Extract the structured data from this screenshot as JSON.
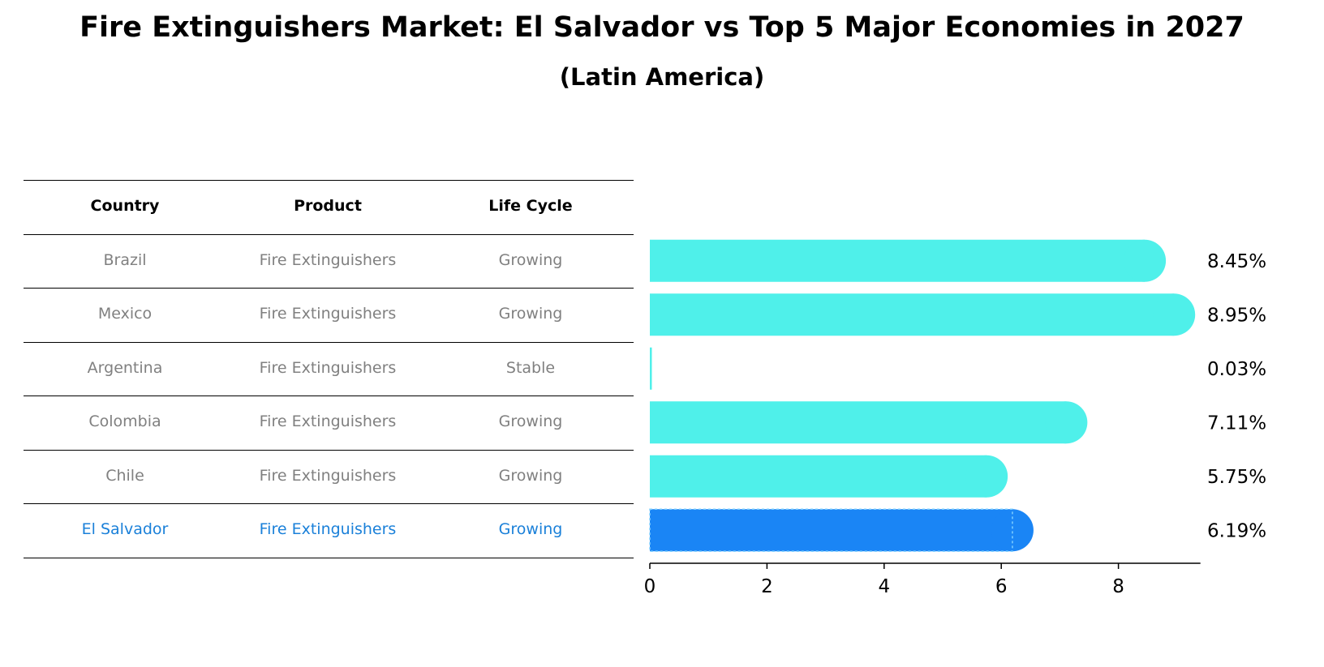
{
  "title": "Fire Extinguishers Market: El Salvador vs Top 5 Major Economies in 2027",
  "subtitle": "(Latin America)",
  "table": {
    "headers": [
      "Country",
      "Product",
      "Life Cycle"
    ],
    "rows": [
      {
        "country": "Brazil",
        "product": "Fire Extinguishers",
        "life_cycle": "Growing",
        "highlight": false
      },
      {
        "country": "Mexico",
        "product": "Fire Extinguishers",
        "life_cycle": "Growing",
        "highlight": false
      },
      {
        "country": "Argentina",
        "product": "Fire Extinguishers",
        "life_cycle": "Stable",
        "highlight": false
      },
      {
        "country": "Colombia",
        "product": "Fire Extinguishers",
        "life_cycle": "Growing",
        "highlight": false
      },
      {
        "country": "Chile",
        "product": "Fire Extinguishers",
        "life_cycle": "Growing",
        "highlight": false
      },
      {
        "country": "El Salvador",
        "product": "Fire Extinguishers",
        "life_cycle": "Growing",
        "highlight": true
      }
    ]
  },
  "chart_data": {
    "type": "bar",
    "orientation": "horizontal",
    "categories": [
      "Brazil",
      "Mexico",
      "Argentina",
      "Colombia",
      "Chile",
      "El Salvador"
    ],
    "values": [
      8.45,
      8.95,
      0.03,
      7.11,
      5.75,
      6.19
    ],
    "value_labels": [
      "8.45%",
      "8.95%",
      "0.03%",
      "7.11%",
      "5.75%",
      "6.19%"
    ],
    "xlim": [
      0,
      9.4
    ],
    "xticks": [
      0,
      2,
      4,
      6,
      8
    ],
    "xlabel": "",
    "ylabel": "",
    "grid": false,
    "colors": {
      "default": "#4ff0ea",
      "highlight": "#1a85f5",
      "highlight_index": 5
    }
  }
}
